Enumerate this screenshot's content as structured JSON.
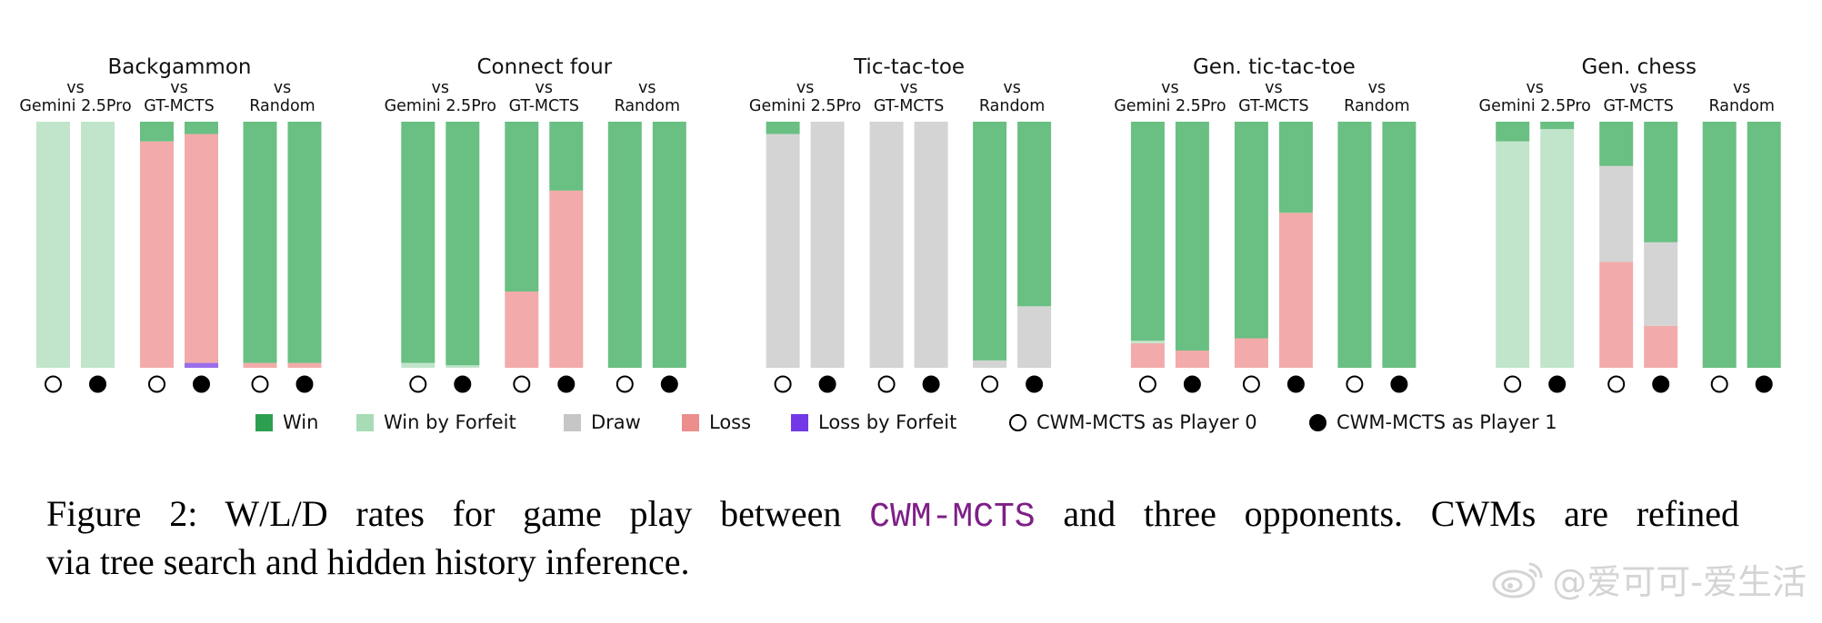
{
  "chart_data": {
    "type": "bar",
    "stacked": true,
    "ylim": [
      0,
      1
    ],
    "stack_order_bottom_to_top": [
      "loss_by_forfeit",
      "loss",
      "draw",
      "win_by_forfeit",
      "win"
    ],
    "panels": [
      {
        "title": "Backgammon",
        "groups": [
          {
            "prefix": "vs",
            "opponent": "Gemini 2.5Pro",
            "bars": [
              {
                "player": 0,
                "win_by_forfeit": 1.0
              },
              {
                "player": 1,
                "win_by_forfeit": 1.0
              }
            ]
          },
          {
            "prefix": "vs",
            "opponent": "GT-MCTS",
            "bars": [
              {
                "player": 0,
                "win": 0.08,
                "loss": 0.92
              },
              {
                "player": 1,
                "win": 0.05,
                "loss": 0.93,
                "loss_by_forfeit": 0.02
              }
            ]
          },
          {
            "prefix": "vs",
            "opponent": "Random",
            "bars": [
              {
                "player": 0,
                "win": 0.98,
                "loss": 0.02
              },
              {
                "player": 1,
                "win": 0.98,
                "loss": 0.02
              }
            ]
          }
        ]
      },
      {
        "title": "Connect four",
        "groups": [
          {
            "prefix": "vs",
            "opponent": "Gemini 2.5Pro",
            "bars": [
              {
                "player": 0,
                "win": 0.98,
                "win_by_forfeit": 0.02
              },
              {
                "player": 1,
                "win": 0.99,
                "win_by_forfeit": 0.01
              }
            ]
          },
          {
            "prefix": "vs",
            "opponent": "GT-MCTS",
            "bars": [
              {
                "player": 0,
                "win": 0.69,
                "loss": 0.31
              },
              {
                "player": 1,
                "win": 0.28,
                "loss": 0.72
              }
            ]
          },
          {
            "prefix": "vs",
            "opponent": "Random",
            "bars": [
              {
                "player": 0,
                "win": 1.0
              },
              {
                "player": 1,
                "win": 1.0
              }
            ]
          }
        ]
      },
      {
        "title": "Tic-tac-toe",
        "groups": [
          {
            "prefix": "vs",
            "opponent": "Gemini 2.5Pro",
            "bars": [
              {
                "player": 0,
                "win": 0.05,
                "draw": 0.95
              },
              {
                "player": 1,
                "draw": 1.0
              }
            ]
          },
          {
            "prefix": "vs",
            "opponent": "GT-MCTS",
            "bars": [
              {
                "player": 0,
                "draw": 1.0
              },
              {
                "player": 1,
                "draw": 1.0
              }
            ]
          },
          {
            "prefix": "vs",
            "opponent": "Random",
            "bars": [
              {
                "player": 0,
                "win": 0.97,
                "draw": 0.03
              },
              {
                "player": 1,
                "win": 0.75,
                "draw": 0.25
              }
            ]
          }
        ]
      },
      {
        "title": "Gen. tic-tac-toe",
        "groups": [
          {
            "prefix": "vs",
            "opponent": "Gemini 2.5Pro",
            "bars": [
              {
                "player": 0,
                "win": 0.89,
                "win_by_forfeit": 0.01,
                "loss": 0.1
              },
              {
                "player": 1,
                "win": 0.93,
                "loss": 0.07
              }
            ]
          },
          {
            "prefix": "vs",
            "opponent": "GT-MCTS",
            "bars": [
              {
                "player": 0,
                "win": 0.88,
                "loss": 0.12
              },
              {
                "player": 1,
                "win": 0.37,
                "loss": 0.63
              }
            ]
          },
          {
            "prefix": "vs",
            "opponent": "Random",
            "bars": [
              {
                "player": 0,
                "win": 1.0
              },
              {
                "player": 1,
                "win": 1.0
              }
            ]
          }
        ]
      },
      {
        "title": "Gen. chess",
        "groups": [
          {
            "prefix": "vs",
            "opponent": "Gemini 2.5Pro",
            "bars": [
              {
                "player": 0,
                "win": 0.08,
                "win_by_forfeit": 0.92
              },
              {
                "player": 1,
                "win": 0.03,
                "win_by_forfeit": 0.97
              }
            ]
          },
          {
            "prefix": "vs",
            "opponent": "GT-MCTS",
            "bars": [
              {
                "player": 0,
                "win": 0.18,
                "draw": 0.39,
                "loss": 0.43
              },
              {
                "player": 1,
                "win": 0.49,
                "draw": 0.34,
                "loss": 0.17
              }
            ]
          },
          {
            "prefix": "vs",
            "opponent": "Random",
            "bars": [
              {
                "player": 0,
                "win": 1.0
              },
              {
                "player": 1,
                "win": 1.0
              }
            ]
          }
        ]
      }
    ],
    "legend": [
      {
        "key": "win",
        "label": "Win",
        "color": "#2e9f50",
        "bar_color": "#6abf83"
      },
      {
        "key": "win_by_forfeit",
        "label": "Win by Forfeit",
        "color": "#a7dcb6",
        "bar_color": "#c1e5ca"
      },
      {
        "key": "draw",
        "label": "Draw",
        "color": "#c6c6c6",
        "bar_color": "#d4d4d4"
      },
      {
        "key": "loss",
        "label": "Loss",
        "color": "#eb8e8c",
        "bar_color": "#f2abaa"
      },
      {
        "key": "loss_by_forfeit",
        "label": "Loss by Forfeit",
        "color": "#7339e6",
        "bar_color": "#9a6de9"
      },
      {
        "marker": "open-circle",
        "player": 0,
        "label": "CWM-MCTS as Player 0"
      },
      {
        "marker": "filled-circle",
        "player": 1,
        "label": "CWM-MCTS as Player 1"
      }
    ]
  },
  "caption": {
    "prefix": "Figure 2: W/L/D rates for game play between ",
    "code": "CWM-MCTS",
    "middle": " and three opponents. CWMs are refined",
    "line2": "via tree search and hidden history inference.",
    "code_color": "#7e1f86"
  },
  "watermark": {
    "text": "@爱可可-爱生活"
  }
}
